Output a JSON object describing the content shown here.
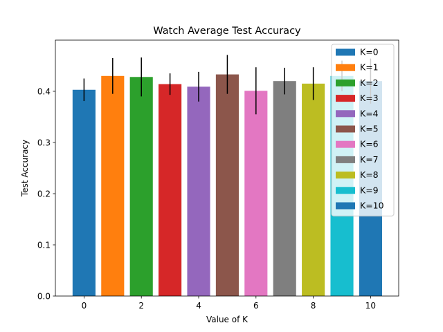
{
  "chart_data": {
    "type": "bar",
    "title": "Watch Average Test Accuracy",
    "xlabel": "Value of K",
    "ylabel": "Test Accuracy",
    "x": [
      0,
      1,
      2,
      3,
      4,
      5,
      6,
      7,
      8,
      9,
      10
    ],
    "xlim": [
      -1.0,
      10.98
    ],
    "ylim": [
      0,
      0.5
    ],
    "xticks": [
      0,
      2,
      4,
      6,
      8,
      10
    ],
    "yticks": [
      0.0,
      0.1,
      0.2,
      0.3,
      0.4
    ],
    "grid": false,
    "legend_position": "top-right",
    "series": [
      {
        "name": "K=0",
        "x": 0,
        "value": 0.403,
        "error": 0.022,
        "color": "#1f77b4"
      },
      {
        "name": "K=1",
        "x": 1,
        "value": 0.43,
        "error": 0.035,
        "color": "#ff7f0e"
      },
      {
        "name": "K=2",
        "x": 2,
        "value": 0.428,
        "error": 0.038,
        "color": "#2ca02c"
      },
      {
        "name": "K=3",
        "x": 3,
        "value": 0.414,
        "error": 0.021,
        "color": "#d62728"
      },
      {
        "name": "K=4",
        "x": 4,
        "value": 0.409,
        "error": 0.029,
        "color": "#9467bd"
      },
      {
        "name": "K=5",
        "x": 5,
        "value": 0.433,
        "error": 0.038,
        "color": "#8c564b"
      },
      {
        "name": "K=6",
        "x": 6,
        "value": 0.401,
        "error": 0.046,
        "color": "#e377c2"
      },
      {
        "name": "K=7",
        "x": 7,
        "value": 0.42,
        "error": 0.026,
        "color": "#7f7f7f"
      },
      {
        "name": "K=8",
        "x": 8,
        "value": 0.415,
        "error": 0.032,
        "color": "#bcbd22"
      },
      {
        "name": "K=9",
        "x": 9,
        "value": 0.43,
        "error": 0.03,
        "color": "#17becf"
      },
      {
        "name": "K=10",
        "x": 10,
        "value": 0.42,
        "error": 0.044,
        "color": "#1f77b4"
      }
    ]
  }
}
